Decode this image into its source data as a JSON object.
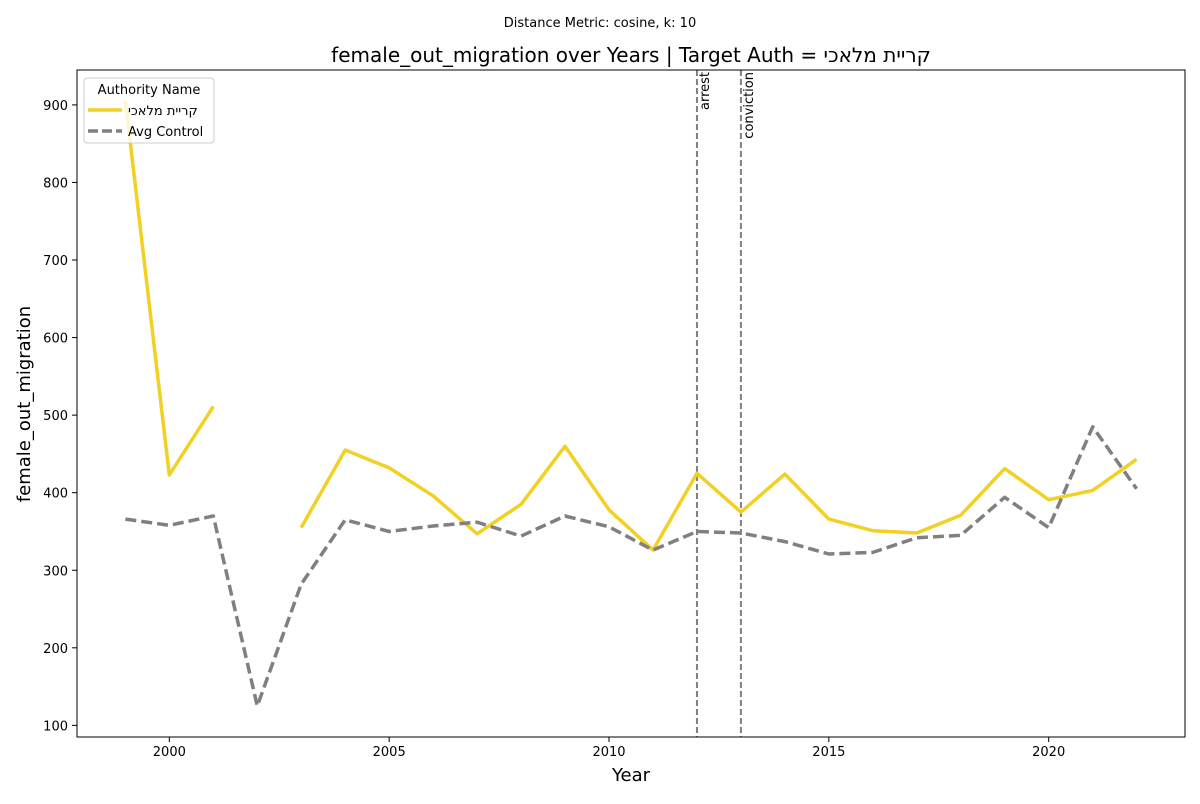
{
  "chart_data": {
    "type": "line",
    "suptitle": "Distance Metric: cosine, k: 10",
    "title": "female_out_migration over Years | Target Auth = קריית מלאכי",
    "xlabel": "Year",
    "ylabel": "female_out_migration",
    "xlim": [
      1997.9,
      2023.1
    ],
    "ylim": [
      85,
      945
    ],
    "x_ticks": [
      2000,
      2005,
      2010,
      2015,
      2020
    ],
    "y_ticks": [
      100,
      200,
      300,
      400,
      500,
      600,
      700,
      800,
      900
    ],
    "grid": false,
    "legend": {
      "title": "Authority Name",
      "placement": "top-left",
      "entries": [
        "קריית מלאכי",
        "Avg Control"
      ]
    },
    "series": [
      {
        "name": "קריית מלאכי",
        "color": "#f2d024",
        "style": "solid",
        "points": [
          [
            1999,
            905
          ],
          [
            2000,
            423
          ],
          [
            2001,
            511
          ],
          [
            2002,
            null
          ],
          [
            2003,
            355
          ],
          [
            2004,
            455
          ],
          [
            2005,
            432
          ],
          [
            2006,
            396
          ],
          [
            2007,
            347
          ],
          [
            2008,
            385
          ],
          [
            2009,
            460
          ],
          [
            2010,
            378
          ],
          [
            2011,
            326
          ],
          [
            2012,
            425
          ],
          [
            2013,
            375
          ],
          [
            2014,
            424
          ],
          [
            2015,
            366
          ],
          [
            2016,
            351
          ],
          [
            2017,
            348
          ],
          [
            2018,
            371
          ],
          [
            2019,
            431
          ],
          [
            2020,
            391
          ],
          [
            2021,
            403
          ],
          [
            2022,
            443
          ]
        ]
      },
      {
        "name": "Avg Control",
        "color": "#808080",
        "style": "dashed",
        "points": [
          [
            1999,
            366
          ],
          [
            2000,
            358
          ],
          [
            2001,
            370
          ],
          [
            2002,
            125
          ],
          [
            2003,
            282
          ],
          [
            2004,
            365
          ],
          [
            2005,
            350
          ],
          [
            2006,
            357
          ],
          [
            2007,
            362
          ],
          [
            2008,
            344
          ],
          [
            2009,
            370
          ],
          [
            2010,
            356
          ],
          [
            2011,
            326
          ],
          [
            2012,
            350
          ],
          [
            2013,
            348
          ],
          [
            2014,
            337
          ],
          [
            2015,
            321
          ],
          [
            2016,
            323
          ],
          [
            2017,
            342
          ],
          [
            2018,
            345
          ],
          [
            2019,
            394
          ],
          [
            2020,
            355
          ],
          [
            2021,
            485
          ],
          [
            2022,
            405
          ]
        ]
      }
    ],
    "annotations": [
      {
        "x": 2012,
        "label": "arrest"
      },
      {
        "x": 2013,
        "label": "conviction"
      }
    ]
  }
}
